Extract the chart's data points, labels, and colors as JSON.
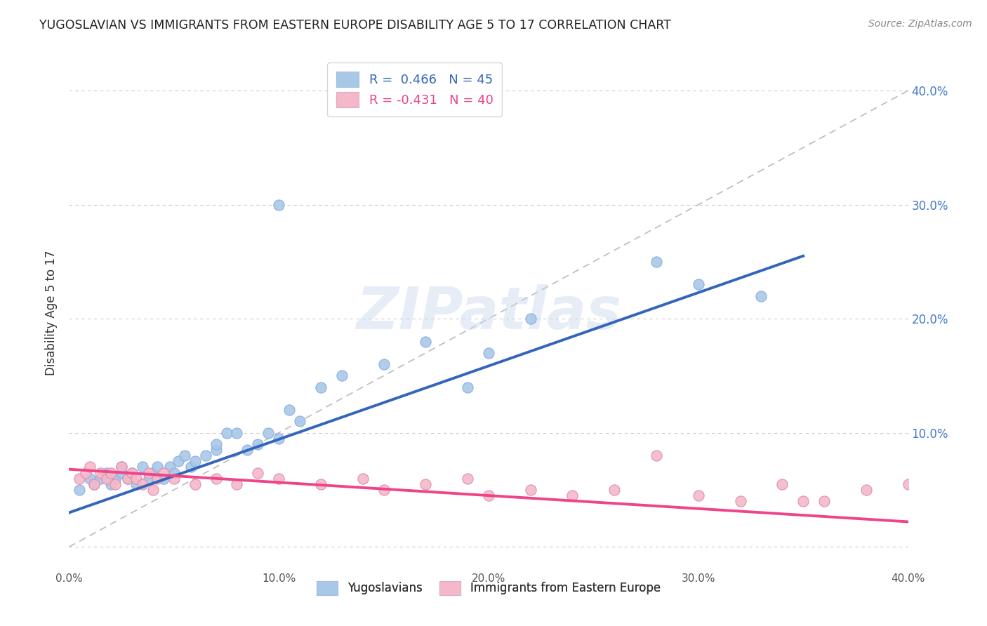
{
  "title": "YUGOSLAVIAN VS IMMIGRANTS FROM EASTERN EUROPE DISABILITY AGE 5 TO 17 CORRELATION CHART",
  "source": "Source: ZipAtlas.com",
  "ylabel": "Disability Age 5 to 17",
  "x_min": 0.0,
  "x_max": 0.4,
  "y_min": -0.02,
  "y_max": 0.43,
  "x_ticks": [
    0.0,
    0.1,
    0.2,
    0.3,
    0.4
  ],
  "x_tick_labels": [
    "0.0%",
    "10.0%",
    "20.0%",
    "30.0%",
    "40.0%"
  ],
  "y_ticks": [
    0.1,
    0.2,
    0.3,
    0.4
  ],
  "y_tick_labels": [
    "10.0%",
    "20.0%",
    "30.0%",
    "40.0%"
  ],
  "blue_dot_color": "#a8c8e8",
  "pink_dot_color": "#f4b8c8",
  "blue_line_color": "#3366bb",
  "pink_line_color": "#ee4488",
  "ref_line_color": "#bbbbbb",
  "legend_label1": "Yugoslavians",
  "legend_label2": "Immigrants from Eastern Europe",
  "watermark": "ZIPatlas",
  "background_color": "#ffffff",
  "grid_color": "#cccccc",
  "blue_scatter_x": [
    0.005,
    0.01,
    0.012,
    0.015,
    0.018,
    0.02,
    0.022,
    0.025,
    0.025,
    0.028,
    0.03,
    0.032,
    0.035,
    0.038,
    0.04,
    0.042,
    0.045,
    0.048,
    0.05,
    0.052,
    0.055,
    0.058,
    0.06,
    0.065,
    0.07,
    0.07,
    0.075,
    0.08,
    0.085,
    0.09,
    0.095,
    0.1,
    0.1,
    0.105,
    0.11,
    0.12,
    0.13,
    0.15,
    0.17,
    0.19,
    0.2,
    0.22,
    0.28,
    0.3,
    0.33
  ],
  "blue_scatter_y": [
    0.05,
    0.06,
    0.055,
    0.06,
    0.065,
    0.055,
    0.06,
    0.065,
    0.07,
    0.06,
    0.065,
    0.055,
    0.07,
    0.06,
    0.065,
    0.07,
    0.06,
    0.07,
    0.065,
    0.075,
    0.08,
    0.07,
    0.075,
    0.08,
    0.085,
    0.09,
    0.1,
    0.1,
    0.085,
    0.09,
    0.1,
    0.095,
    0.3,
    0.12,
    0.11,
    0.14,
    0.15,
    0.16,
    0.18,
    0.14,
    0.17,
    0.2,
    0.25,
    0.23,
    0.22
  ],
  "pink_scatter_x": [
    0.005,
    0.008,
    0.01,
    0.012,
    0.015,
    0.018,
    0.02,
    0.022,
    0.025,
    0.028,
    0.03,
    0.032,
    0.035,
    0.038,
    0.04,
    0.042,
    0.045,
    0.05,
    0.06,
    0.07,
    0.08,
    0.09,
    0.1,
    0.12,
    0.14,
    0.15,
    0.17,
    0.19,
    0.2,
    0.22,
    0.24,
    0.26,
    0.28,
    0.3,
    0.32,
    0.34,
    0.36,
    0.38,
    0.35,
    0.4
  ],
  "pink_scatter_y": [
    0.06,
    0.065,
    0.07,
    0.055,
    0.065,
    0.06,
    0.065,
    0.055,
    0.07,
    0.06,
    0.065,
    0.06,
    0.055,
    0.065,
    0.05,
    0.06,
    0.065,
    0.06,
    0.055,
    0.06,
    0.055,
    0.065,
    0.06,
    0.055,
    0.06,
    0.05,
    0.055,
    0.06,
    0.045,
    0.05,
    0.045,
    0.05,
    0.08,
    0.045,
    0.04,
    0.055,
    0.04,
    0.05,
    0.04,
    0.055
  ],
  "blue_trend_x": [
    0.0,
    0.35
  ],
  "blue_trend_y": [
    0.03,
    0.255
  ],
  "pink_trend_x": [
    0.0,
    0.4
  ],
  "pink_trend_y": [
    0.068,
    0.022
  ],
  "ref_line_x": [
    0.0,
    0.4
  ],
  "ref_line_y": [
    0.0,
    0.4
  ]
}
